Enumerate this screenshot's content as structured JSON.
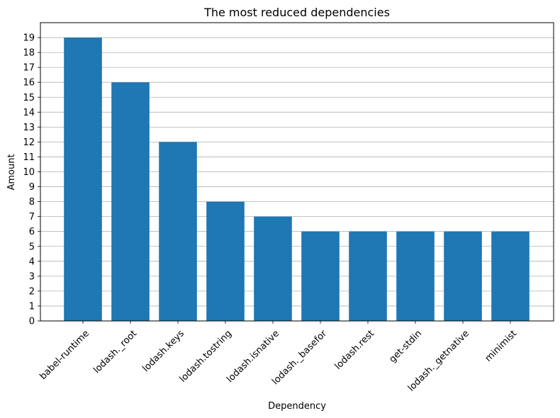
{
  "chart_data": {
    "type": "bar",
    "title": "The most reduced dependencies",
    "xlabel": "Dependency",
    "ylabel": "Amount",
    "categories": [
      "babel-runtime",
      "lodash._root",
      "lodash.keys",
      "lodash.tostring",
      "lodash.isnative",
      "lodash._basefor",
      "lodash.rest",
      "get-stdin",
      "lodash._getnative",
      "minimist"
    ],
    "values": [
      19,
      16,
      12,
      8,
      7,
      6,
      6,
      6,
      6,
      6
    ],
    "ylim": [
      0,
      20
    ],
    "yticks": [
      0,
      1,
      2,
      3,
      4,
      5,
      6,
      7,
      8,
      9,
      10,
      11,
      12,
      13,
      14,
      15,
      16,
      17,
      18,
      19
    ],
    "grid": "horizontal",
    "colors": {
      "bar": "#1f77b4",
      "grid": "#b0b0b0",
      "axis": "#000000"
    }
  }
}
